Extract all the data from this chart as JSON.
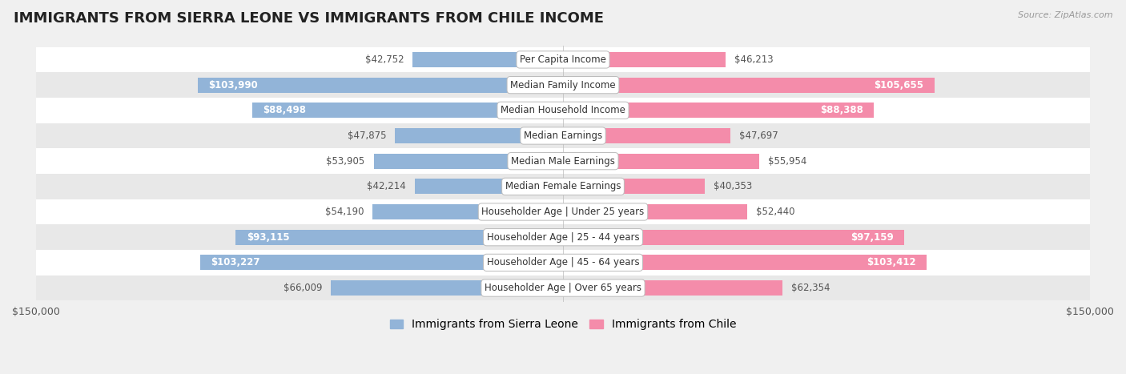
{
  "title": "IMMIGRANTS FROM SIERRA LEONE VS IMMIGRANTS FROM CHILE INCOME",
  "source": "Source: ZipAtlas.com",
  "categories": [
    "Per Capita Income",
    "Median Family Income",
    "Median Household Income",
    "Median Earnings",
    "Median Male Earnings",
    "Median Female Earnings",
    "Householder Age | Under 25 years",
    "Householder Age | 25 - 44 years",
    "Householder Age | 45 - 64 years",
    "Householder Age | Over 65 years"
  ],
  "sierra_leone_values": [
    42752,
    103990,
    88498,
    47875,
    53905,
    42214,
    54190,
    93115,
    103227,
    66009
  ],
  "chile_values": [
    46213,
    105655,
    88388,
    47697,
    55954,
    40353,
    52440,
    97159,
    103412,
    62354
  ],
  "sierra_leone_labels": [
    "$42,752",
    "$103,990",
    "$88,498",
    "$47,875",
    "$53,905",
    "$42,214",
    "$54,190",
    "$93,115",
    "$103,227",
    "$66,009"
  ],
  "chile_labels": [
    "$46,213",
    "$105,655",
    "$88,388",
    "$47,697",
    "$55,954",
    "$40,353",
    "$52,440",
    "$97,159",
    "$103,412",
    "$62,354"
  ],
  "sierra_leone_color": "#92b4d8",
  "chile_color": "#f48caa",
  "max_value": 150000,
  "bar_height": 0.6,
  "title_fontsize": 13,
  "label_fontsize": 8.5,
  "cat_fontsize": 8.5,
  "axis_label_fontsize": 9,
  "legend_fontsize": 10,
  "label_threshold": 75000
}
